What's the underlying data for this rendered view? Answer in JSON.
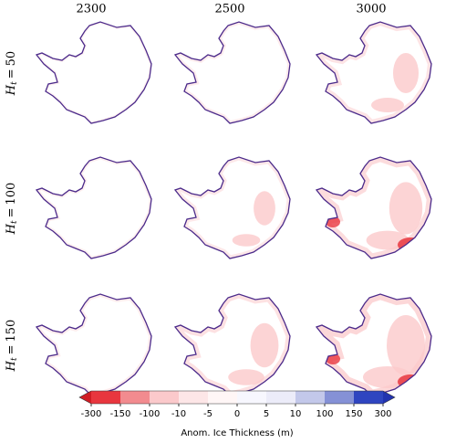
{
  "columns": [
    "2300",
    "2500",
    "3000"
  ],
  "row_label": {
    "symbol": "H",
    "subscript": "t",
    "operator": "="
  },
  "rows": [
    "50",
    "100",
    "150"
  ],
  "colorbar": {
    "label": "Anom. Ice Thickness (m)",
    "ticks": [
      -300,
      -150,
      -100,
      -10,
      -5,
      0,
      5,
      10,
      100,
      150,
      300
    ],
    "colors": [
      "#d01c24",
      "#e8363e",
      "#f28b8f",
      "#fbc9cb",
      "#fde6e7",
      "#fff6f6",
      "#f7f7fe",
      "#ececf9",
      "#c3c8ea",
      "#8591d6",
      "#2f45c0",
      "#2233b0"
    ]
  }
}
